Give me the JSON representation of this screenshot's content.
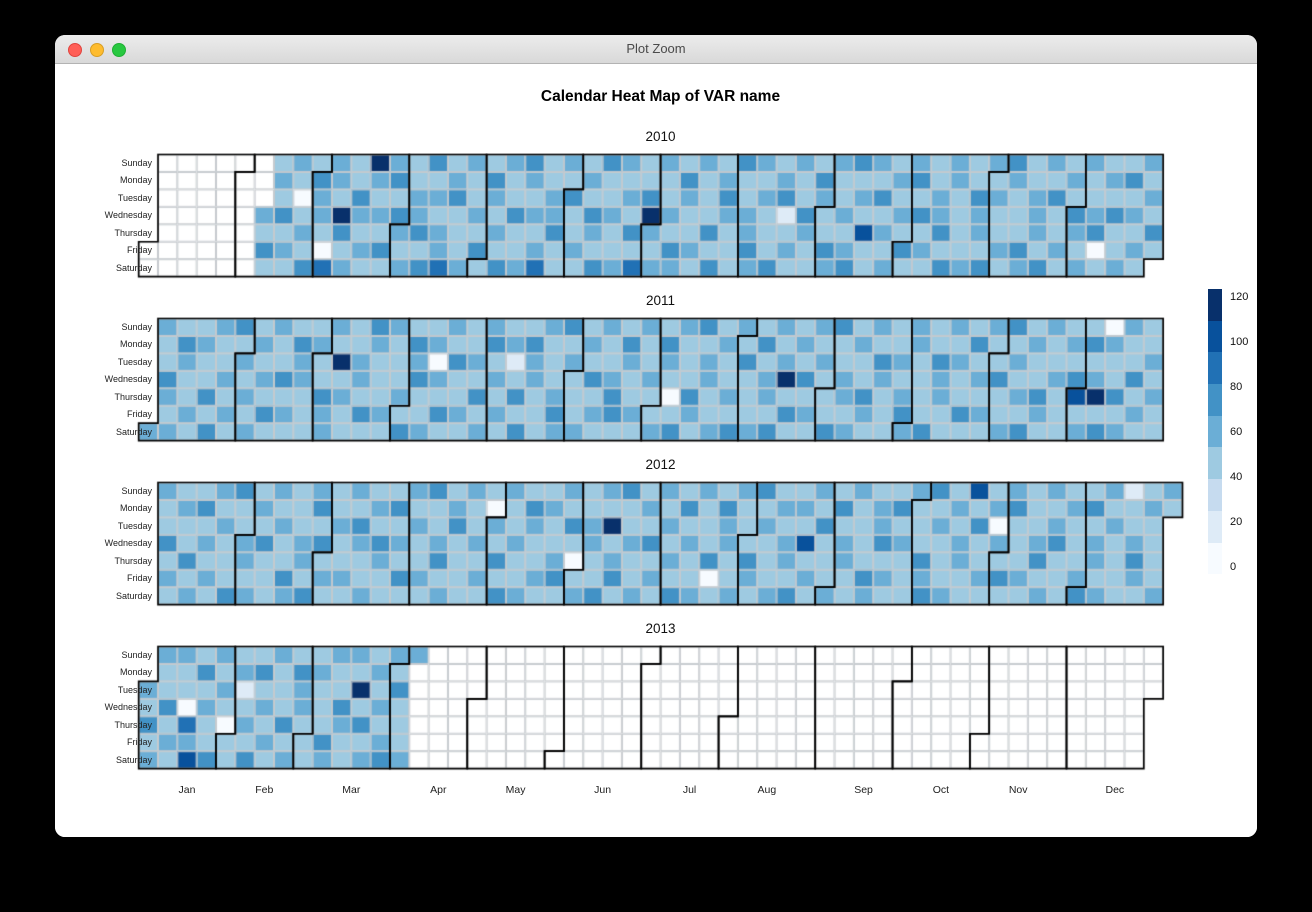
{
  "window": {
    "title": "Plot Zoom",
    "controls": {
      "close": "close",
      "minimize": "minimize",
      "zoom": "zoom"
    }
  },
  "chart_data": {
    "type": "heatmap",
    "subtype": "calendar-heatmap",
    "title": "Calendar Heat Map of VAR name",
    "day_labels": [
      "Sunday",
      "Monday",
      "Tuesday",
      "Wednesday",
      "Thursday",
      "Friday",
      "Saturday"
    ],
    "month_labels": [
      "Jan",
      "Feb",
      "Mar",
      "Apr",
      "May",
      "Jun",
      "Jul",
      "Aug",
      "Sep",
      "Oct",
      "Nov",
      "Dec"
    ],
    "legend_ticks": [
      120,
      100,
      80,
      60,
      40,
      20,
      0
    ],
    "value_range": [
      0,
      120
    ],
    "legend_position": "right",
    "grid": true,
    "palette": [
      "#F7FBFF",
      "#DEEBF7",
      "#C6DBEF",
      "#9ECAE1",
      "#6BAED6",
      "#4292C6",
      "#2171B5",
      "#08519C",
      "#08306B"
    ],
    "cell_encoding": "years[].weeks is an array of 53 week-column strings; char index 0=Sunday .. 6=Saturday; '.' = no data (white); hex-13 digit 0-9,a,b,c = value/10 (0..120)",
    "years": [
      {
        "year": "2010",
        "jan1_dow": 5,
        "days": 365,
        "weeks": [
          ".......",
          ".......",
          ".......",
          ".......",
          ".......",
          ".......",
          "...6574",
          "5647564",
          "6515647",
          "4766418",
          "665b746",
          "5576465",
          "b646575",
          "6757646",
          "5466757",
          "7564668",
          "4675546",
          "6546475",
          "5764657",
          "6457546",
          "7646568",
          "4566745",
          "6475465",
          "5647657",
          "7456546",
          "6564758",
          "457b646",
          "6546576",
          "5765464",
          "6454757",
          "4676545",
          "7546676",
          "6465457",
          "5672564",
          "6547645",
          "4765576",
          "6456467",
          "7564a54",
          "6475646",
          "5646575",
          "6757464",
          "4566757",
          "6645546",
          "5476657",
          "6564465",
          "7645576",
          "5566647",
          "6474565",
          "5657646",
          "6546714",
          "4657546",
          "5746465",
          "646575."
        ]
      },
      {
        "year": "2011",
        "jan1_dow": 6,
        "days": 365,
        "weeks": [
          "......6",
          "6547656",
          "4765465",
          "5654747",
          "6546565",
          "7465646",
          "5656475",
          "6547564",
          "4766455",
          "5645766",
          "65b4645",
          "5466574",
          "7654465",
          "6545657",
          "4767546",
          "5616475",
          "6475564",
          "5564746",
          "6746565",
          "4625747",
          "5766454",
          "6454676",
          "7565546",
          "5647465",
          "6556774",
          "4765465",
          "6546556",
          "5764147",
          "6455765",
          "7566446",
          "5645657",
          "6474556",
          "4756647",
          "656b475",
          "5647564",
          "6465457",
          "7556646",
          "4645765",
          "6576454",
          "5465676",
          "6654547",
          "4576654",
          "6465475",
          "5746564",
          "6557446",
          "7465657",
          "5654764",
          "6546455",
          "4657a46",
          "5746b57",
          "1654746",
          "6547565",
          "5465654"
        ]
      },
      {
        "year": "2012",
        "jan1_dow": 0,
        "days": 366,
        "weeks": [
          "6547565",
          "4655746",
          "5746465",
          "6564557",
          "7456646",
          "5647455",
          "6465576",
          "4556647",
          "6747564",
          "5465465",
          "6576556",
          "4647645",
          "5756474",
          "6465565",
          "7546746",
          "5674455",
          "6456564",
          "5165747",
          "6546456",
          "4765565",
          "5654674",
          "6475146",
          "5566457",
          "64b5675",
          "7456546",
          "5647465",
          "6564657",
          "4756546",
          "6545715",
          "5766456",
          "6454765",
          "7565546",
          "4646657",
          "565a464",
          "6474556",
          "5756645",
          "6545476",
          "4667565",
          "5746454",
          "6455767",
          "7564546",
          "5646655",
          "a475464",
          "5616574",
          "6745465",
          "5456756",
          "6567445",
          "4645567",
          "5756646",
          "6465455",
          "2546764",
          "5654546",
          "65....."
        ]
      },
      {
        "year": "2013",
        "jan1_dow": 2,
        "days": 365,
        "weeks": [
          "..65746",
          "6547565",
          "654186a",
          "5746557",
          "6465145",
          "4625647",
          "5746565",
          "6554746",
          "4766455",
          "5645576",
          "6457645",
          "65b4756",
          "5646467",
          "6575546",
          "6......",
          ".......",
          ".......",
          ".......",
          ".......",
          ".......",
          ".......",
          ".......",
          ".......",
          ".......",
          ".......",
          ".......",
          ".......",
          ".......",
          ".......",
          ".......",
          ".......",
          ".......",
          ".......",
          ".......",
          ".......",
          ".......",
          ".......",
          ".......",
          ".......",
          ".......",
          ".......",
          ".......",
          ".......",
          ".......",
          ".......",
          ".......",
          ".......",
          ".......",
          ".......",
          ".......",
          ".......",
          ".......",
          "......."
        ]
      }
    ]
  }
}
